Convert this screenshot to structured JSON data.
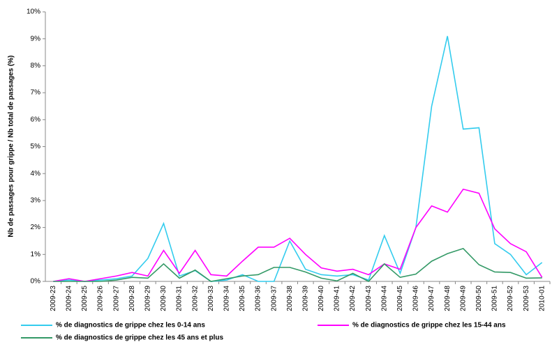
{
  "chart_data": {
    "type": "line",
    "y_label": "Nb de passages pour grippe / Nb total de passages (%)",
    "categories": [
      "2009-23",
      "2009-24",
      "2009-25",
      "2009-26",
      "2009-27",
      "2009-28",
      "2009-29",
      "2009-30",
      "2009-31",
      "2009-32",
      "2009-33",
      "2009-34",
      "2009-35",
      "2009-36",
      "2009-37",
      "2009-38",
      "2009-39",
      "2009-40",
      "2009-41",
      "2009-42",
      "2009-43",
      "2009-44",
      "2009-45",
      "2009-46",
      "2009-47",
      "2009-48",
      "2009-49",
      "2009-50",
      "2009-51",
      "2009-52",
      "2009-53",
      "2010-01"
    ],
    "series": [
      {
        "name": "% de diagnostics de grippe chez les 0-14 ans",
        "color": "#33ccee",
        "values": [
          0,
          0.05,
          0,
          0.05,
          0.1,
          0.2,
          0.85,
          2.15,
          0.2,
          0.4,
          0,
          0.05,
          0.25,
          0,
          0,
          1.5,
          0.45,
          0.25,
          0.2,
          0.25,
          0.05,
          1.7,
          0.3,
          2.0,
          6.5,
          9.1,
          5.65,
          5.7,
          1.4,
          1.0,
          0.25,
          0.7
        ]
      },
      {
        "name": "% de diagnostics de grippe chez les 15-44 ans",
        "color": "#ff00ff",
        "values": [
          0,
          0.1,
          0,
          0.1,
          0.2,
          0.33,
          0.2,
          1.15,
          0.3,
          1.15,
          0.25,
          0.2,
          0.75,
          1.27,
          1.27,
          1.6,
          1.0,
          0.5,
          0.38,
          0.45,
          0.25,
          0.65,
          0.45,
          2.0,
          2.8,
          2.57,
          3.42,
          3.27,
          1.95,
          1.4,
          1.1,
          0.15
        ]
      },
      {
        "name": "% de diagnostics de grippe chez les 45 ans et plus",
        "color": "#339966",
        "values": [
          0,
          0,
          0,
          0,
          0.05,
          0.15,
          0.12,
          0.65,
          0.12,
          0.42,
          0,
          0.1,
          0.2,
          0.25,
          0.52,
          0.52,
          0.35,
          0.12,
          0.02,
          0.3,
          0,
          0.65,
          0.15,
          0.27,
          0.75,
          1.03,
          1.22,
          0.62,
          0.35,
          0.33,
          0.12,
          0.13
        ]
      }
    ],
    "ylim": [
      0,
      10
    ],
    "yticks": [
      {
        "value": 0,
        "label": "0%"
      },
      {
        "value": 1,
        "label": "1%"
      },
      {
        "value": 2,
        "label": "2%"
      },
      {
        "value": 3,
        "label": "3%"
      },
      {
        "value": 4,
        "label": "4%"
      },
      {
        "value": 5,
        "label": "5%"
      },
      {
        "value": 6,
        "label": "6%"
      },
      {
        "value": 7,
        "label": "7%"
      },
      {
        "value": 8,
        "label": "8%"
      },
      {
        "value": 9,
        "label": "9%"
      },
      {
        "value": 10,
        "label": "10%"
      }
    ],
    "grid": false
  }
}
